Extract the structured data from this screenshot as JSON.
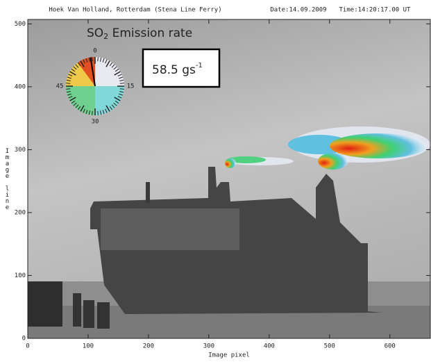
{
  "chart_data": {
    "type": "image",
    "header": {
      "location": "Hoek Van Holland, Rotterdam (Stena Line Ferry)",
      "date": "Date:14.09.2009",
      "time": "Time:14:20:17.00 UT"
    },
    "title": {
      "main": "SO",
      "subscript": "2",
      "rest": " Emission rate"
    },
    "rate": {
      "value": 58.5,
      "unit": "gs",
      "exponent": "-1"
    },
    "gauge_labels": [
      0,
      15,
      30,
      45
    ],
    "x_label": "Image pixel",
    "y_label": "Image line",
    "xlim": [
      0,
      667
    ],
    "ylim": [
      0,
      507
    ],
    "xticks": [
      0,
      100,
      200,
      300,
      400,
      500,
      600
    ],
    "yticks": [
      0,
      100,
      200,
      300,
      400,
      500
    ]
  }
}
